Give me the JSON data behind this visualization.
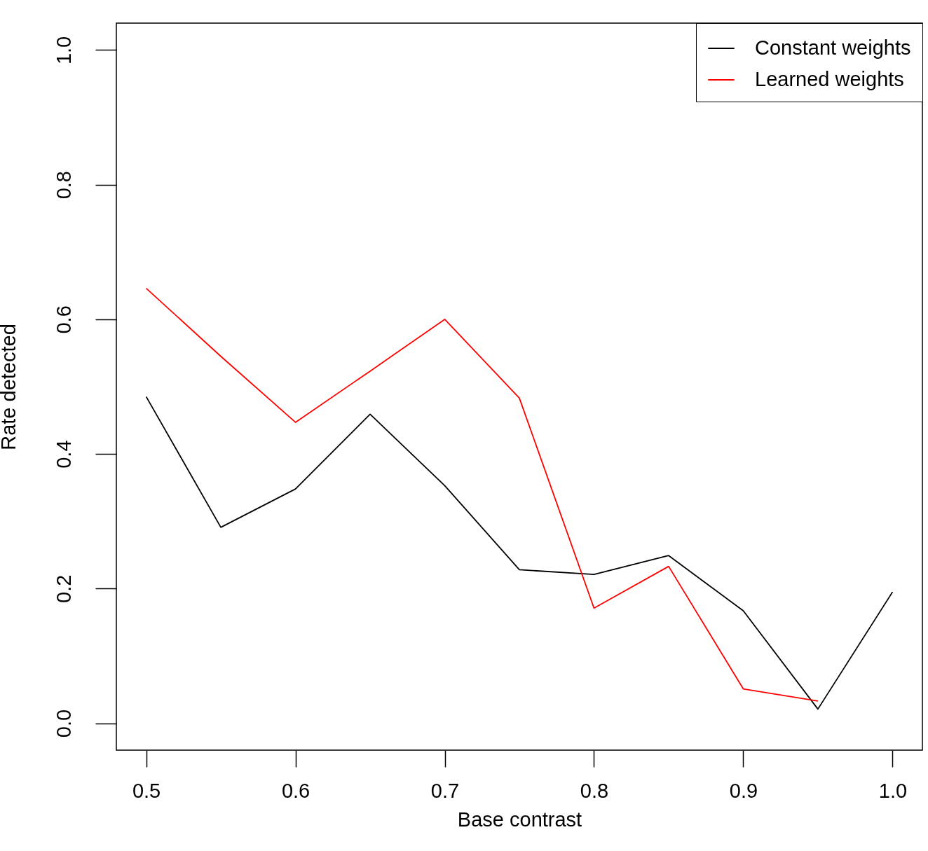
{
  "chart_data": {
    "type": "line",
    "xlabel": "Base contrast",
    "ylabel": "Rate detected",
    "x": [
      0.5,
      0.55,
      0.6,
      0.65,
      0.7,
      0.75,
      0.8,
      0.85,
      0.9,
      0.95,
      1.0
    ],
    "series": [
      {
        "name": "Constant weights",
        "color": "#000000",
        "values": [
          0.485,
          0.291,
          0.348,
          0.459,
          0.353,
          0.228,
          0.221,
          0.249,
          0.167,
          0.021,
          0.195
        ]
      },
      {
        "name": "Learned weights",
        "color": "#ff0000",
        "values": [
          0.646,
          0.545,
          0.447,
          0.523,
          0.6,
          0.483,
          0.171,
          0.233,
          0.051,
          0.033,
          null
        ]
      }
    ],
    "xlim": [
      0.48,
      1.02
    ],
    "xticks": [
      0.5,
      0.6,
      0.7,
      0.8,
      0.9,
      {
        "value": 1.0,
        "label": "1.0"
      }
    ],
    "ylim": [
      -0.04,
      1.04
    ],
    "yticks": [
      {
        "value": 0,
        "label": "0.0"
      },
      0.2,
      0.4,
      0.6,
      0.8,
      {
        "value": 1,
        "label": "1.0"
      }
    ],
    "grid": false,
    "legend": "top right",
    "marker": "none",
    "line_style": "solid"
  }
}
